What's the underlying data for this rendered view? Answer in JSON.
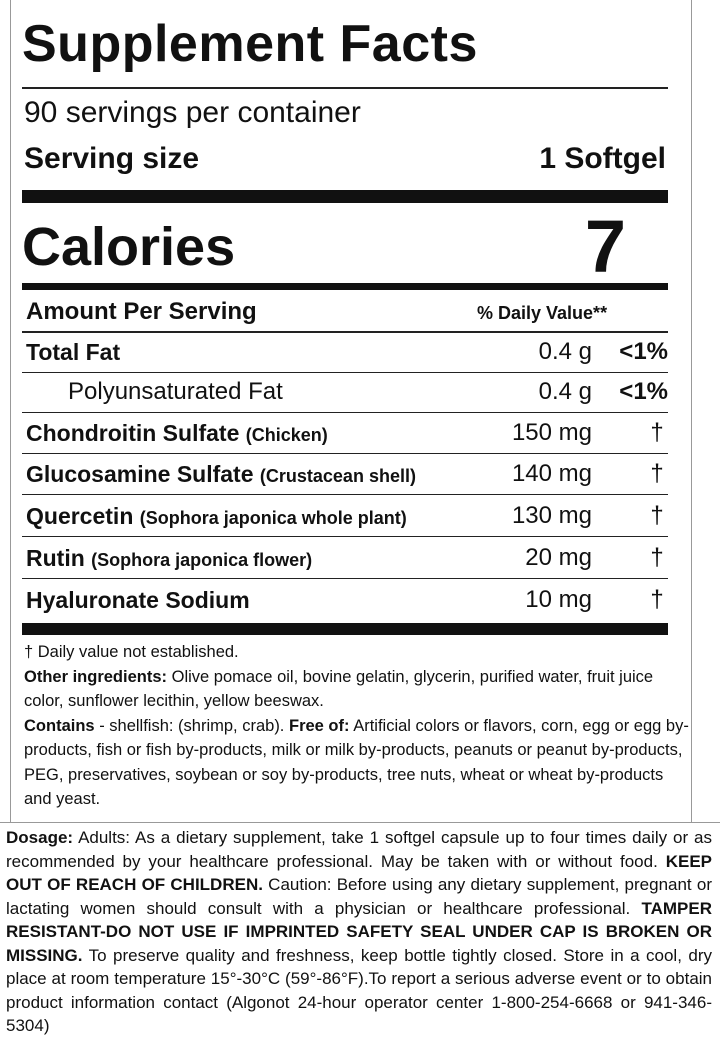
{
  "title": "Supplement Facts",
  "servings": "90 servings per container",
  "serving_size": {
    "label": "Serving size",
    "value": "1 Softgel"
  },
  "calories": {
    "label": "Calories",
    "value": "7"
  },
  "header": {
    "amount": "Amount Per Serving",
    "dv": "% Daily Value**"
  },
  "rows": [
    {
      "name": "Total Fat",
      "amount": "0.4 g",
      "dv": "<1%"
    },
    {
      "name": "Polyunsaturated Fat",
      "amount": "0.4 g",
      "dv": "<1%"
    },
    {
      "name": "Chondroitin Sulfate",
      "source": "(Chicken)",
      "amount": "150 mg",
      "dv": "†"
    },
    {
      "name": "Glucosamine Sulfate",
      "source": "(Crustacean shell)",
      "amount": "140 mg",
      "dv": "†"
    },
    {
      "name": "Quercetin",
      "source": "(Sophora japonica whole plant)",
      "amount": "130 mg",
      "dv": "†"
    },
    {
      "name": "Rutin",
      "source": "(Sophora japonica flower)",
      "amount": "20 mg",
      "dv": "†"
    },
    {
      "name": "Hyaluronate Sodium",
      "amount": "10 mg",
      "dv": "†"
    }
  ],
  "footnotes": {
    "dagger": "† Daily value not established.",
    "other_label": "Other ingredients:",
    "other_text": "Olive pomace oil, bovine gelatin, glycerin, purified water, fruit juice color, sunflower lecithin, yellow beeswax.",
    "contains_label": "Contains",
    "contains_text": "- shellfish: (shrimp, crab).",
    "free_label": "Free of:",
    "free_text": "Artificial colors or flavors, corn, egg or egg by-products, fish or fish by-products, milk or milk by-products, peanuts or peanut by-products, PEG, preservatives, soybean or soy by-products, tree nuts, wheat or wheat by-products and yeast."
  },
  "directions": {
    "dosage_label": "Dosage:",
    "dosage_text": "Adults:  As a dietary supplement, take 1 softgel capsule up to four times daily or as recommended by your healthcare professional. May be taken with or without food.",
    "keep_out": "KEEP OUT OF REACH OF CHILDREN.",
    "caution": "Caution: Before using any dietary supplement, pregnant or lactating women should consult with a physician or healthcare professional.",
    "tamper": "TAMPER RESISTANT-DO NOT USE IF IMPRINTED SAFETY SEAL UNDER CAP IS BROKEN OR MISSING.",
    "storage": "To preserve quality and freshness, keep bottle tightly closed. Store in a cool, dry place at room temperature 15°-30°C (59°-86°F).To report a serious adverse event or to obtain product information contact (Algonot 24-hour operator center 1-800-254-6668 or 941-346-5304)"
  }
}
